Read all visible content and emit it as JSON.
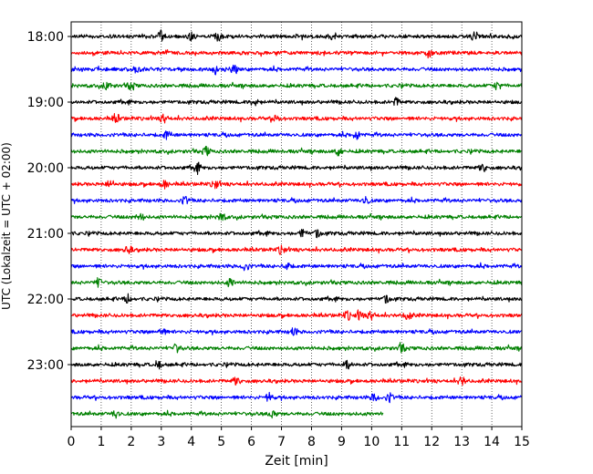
{
  "chart_data": {
    "type": "line",
    "title": "",
    "xlabel": "Zeit  [min]",
    "ylabel": "UTC (Lokalzeit = UTC + 02:00)",
    "xlim": [
      0,
      15
    ],
    "x_ticks": [
      "0",
      "1",
      "2",
      "3",
      "4",
      "5",
      "6",
      "7",
      "8",
      "9",
      "10",
      "11",
      "12",
      "13",
      "14",
      "15"
    ],
    "y_ticks": [
      "18:00",
      "19:00",
      "20:00",
      "21:00",
      "22:00",
      "23:00"
    ],
    "grid": "vertical dotted",
    "trace_interval_min": 15,
    "colors": [
      "#000000",
      "#ff0000",
      "#0000ff",
      "#008000"
    ],
    "traces": [
      {
        "start": "18:00",
        "color": "#000000",
        "end_min": 15,
        "events_min": [
          3.0,
          4.0,
          4.9,
          8.7,
          13.4
        ]
      },
      {
        "start": "18:15",
        "color": "#ff0000",
        "end_min": 15,
        "events_min": [
          11.9
        ]
      },
      {
        "start": "18:30",
        "color": "#0000ff",
        "end_min": 15,
        "events_min": [
          2.2,
          4.8,
          5.4
        ]
      },
      {
        "start": "18:45",
        "color": "#008000",
        "end_min": 15,
        "events_min": [
          1.2,
          2.0,
          14.2
        ]
      },
      {
        "start": "19:00",
        "color": "#000000",
        "end_min": 15,
        "events_min": [
          6.1,
          10.8
        ]
      },
      {
        "start": "19:15",
        "color": "#ff0000",
        "end_min": 15,
        "events_min": [
          1.5,
          3.1,
          6.8
        ]
      },
      {
        "start": "19:30",
        "color": "#0000ff",
        "end_min": 15,
        "events_min": [
          3.2,
          9.5
        ]
      },
      {
        "start": "19:45",
        "color": "#008000",
        "end_min": 15,
        "events_min": [
          4.5,
          8.9
        ]
      },
      {
        "start": "20:00",
        "color": "#000000",
        "end_min": 15,
        "events_min": [
          4.2,
          13.7
        ]
      },
      {
        "start": "20:15",
        "color": "#ff0000",
        "end_min": 15,
        "events_min": [
          1.3,
          3.1,
          4.8
        ]
      },
      {
        "start": "20:30",
        "color": "#0000ff",
        "end_min": 15,
        "events_min": [
          3.8,
          9.8
        ]
      },
      {
        "start": "20:45",
        "color": "#008000",
        "end_min": 15,
        "events_min": [
          2.3,
          5.0
        ]
      },
      {
        "start": "21:00",
        "color": "#000000",
        "end_min": 15,
        "events_min": [
          7.7,
          8.2
        ]
      },
      {
        "start": "21:15",
        "color": "#ff0000",
        "end_min": 15,
        "events_min": [
          1.9,
          7.0
        ]
      },
      {
        "start": "21:30",
        "color": "#0000ff",
        "end_min": 15,
        "events_min": [
          5.8,
          7.2
        ]
      },
      {
        "start": "21:45",
        "color": "#008000",
        "end_min": 15,
        "events_min": [
          0.9,
          5.3
        ]
      },
      {
        "start": "22:00",
        "color": "#000000",
        "end_min": 15,
        "events_min": [
          1.9,
          10.5
        ]
      },
      {
        "start": "22:15",
        "color": "#ff0000",
        "end_min": 15,
        "events_min": [
          9.2,
          9.6,
          10.0,
          11.2
        ]
      },
      {
        "start": "22:30",
        "color": "#0000ff",
        "end_min": 15,
        "events_min": [
          3.0,
          7.4
        ]
      },
      {
        "start": "22:45",
        "color": "#008000",
        "end_min": 15,
        "events_min": [
          3.5,
          11.0
        ]
      },
      {
        "start": "23:00",
        "color": "#000000",
        "end_min": 15,
        "events_min": [
          2.9,
          9.2
        ]
      },
      {
        "start": "23:15",
        "color": "#ff0000",
        "end_min": 15,
        "events_min": [
          5.5,
          13.0
        ]
      },
      {
        "start": "23:30",
        "color": "#0000ff",
        "end_min": 15,
        "events_min": [
          6.6,
          10.1,
          10.6
        ]
      },
      {
        "start": "23:45",
        "color": "#008000",
        "end_min": 10.4,
        "events_min": [
          1.5,
          6.7
        ]
      }
    ]
  }
}
